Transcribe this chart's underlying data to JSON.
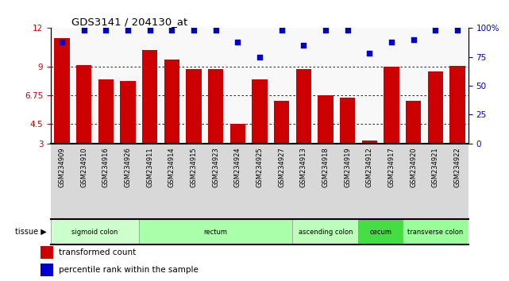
{
  "title": "GDS3141 / 204130_at",
  "samples": [
    "GSM234909",
    "GSM234910",
    "GSM234916",
    "GSM234926",
    "GSM234911",
    "GSM234914",
    "GSM234915",
    "GSM234923",
    "GSM234924",
    "GSM234925",
    "GSM234927",
    "GSM234913",
    "GSM234918",
    "GSM234919",
    "GSM234912",
    "GSM234917",
    "GSM234920",
    "GSM234921",
    "GSM234922"
  ],
  "bar_values": [
    11.2,
    9.1,
    8.0,
    7.9,
    10.3,
    9.55,
    8.8,
    8.8,
    4.5,
    8.0,
    6.3,
    8.8,
    6.75,
    6.55,
    3.2,
    9.0,
    6.3,
    8.6,
    9.05
  ],
  "percentile_values": [
    88,
    98,
    98,
    98,
    98,
    98,
    98,
    98,
    88,
    75,
    98,
    85,
    98,
    98,
    78,
    88,
    90,
    98,
    98
  ],
  "ylim_left": [
    3,
    12
  ],
  "ylim_right": [
    0,
    100
  ],
  "yticks_left": [
    3,
    4.5,
    6.75,
    9,
    12
  ],
  "ytick_labels_left": [
    "3",
    "4.5",
    "6.75",
    "9",
    "12"
  ],
  "yticks_right": [
    0,
    25,
    50,
    75,
    100
  ],
  "ytick_labels_right": [
    "0",
    "25",
    "50",
    "75",
    "100%"
  ],
  "bar_color": "#cc0000",
  "scatter_color": "#0000cc",
  "bg_color": "#ffffff",
  "grid_color": "#000000",
  "tissue_groups": [
    {
      "label": "sigmoid colon",
      "start": 0,
      "end": 4,
      "color": "#ccffcc"
    },
    {
      "label": "rectum",
      "start": 4,
      "end": 11,
      "color": "#aaffaa"
    },
    {
      "label": "ascending colon",
      "start": 11,
      "end": 14,
      "color": "#bbffbb"
    },
    {
      "label": "cecum",
      "start": 14,
      "end": 16,
      "color": "#44dd44"
    },
    {
      "label": "transverse colon",
      "start": 16,
      "end": 19,
      "color": "#99ff99"
    }
  ],
  "tissue_label": "tissue",
  "legend_items": [
    {
      "color": "#cc0000",
      "label": "transformed count"
    },
    {
      "color": "#0000cc",
      "label": "percentile rank within the sample"
    }
  ]
}
